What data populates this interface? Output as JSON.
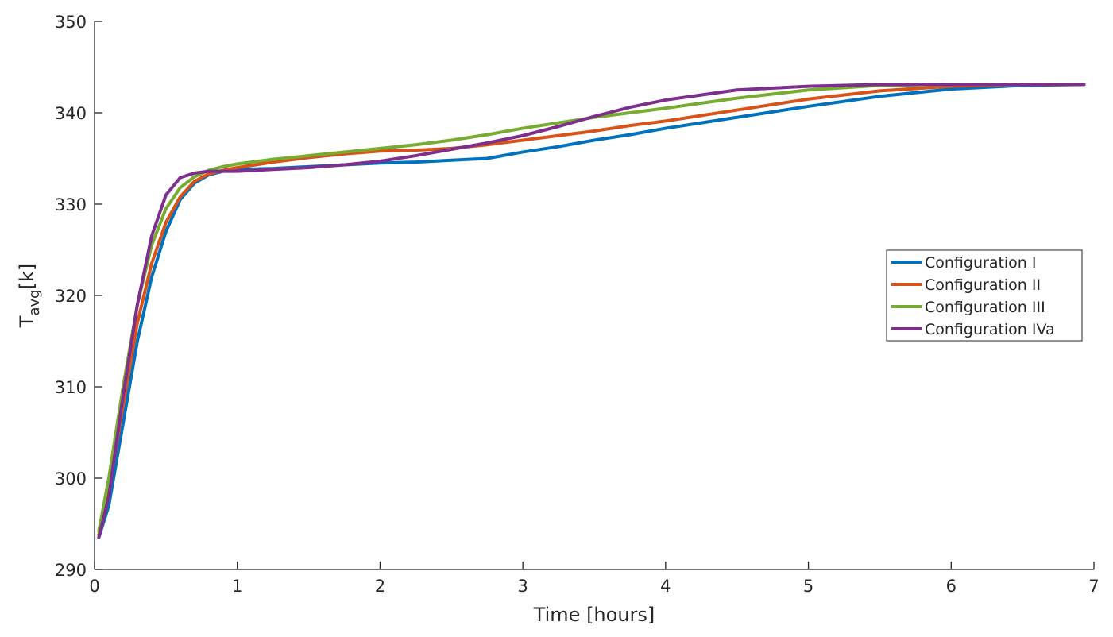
{
  "chart_data": {
    "type": "line",
    "xlabel": "Time [hours]",
    "ylabel": "T",
    "ylabel_subscript": "avg",
    "ylabel_unit": "[k]",
    "x": [
      0.03,
      0.1,
      0.2,
      0.3,
      0.4,
      0.5,
      0.6,
      0.7,
      0.8,
      0.9,
      1.0,
      1.25,
      1.5,
      1.75,
      2.0,
      2.25,
      2.5,
      2.75,
      3.0,
      3.25,
      3.5,
      3.75,
      4.0,
      4.5,
      5.0,
      5.5,
      6.0,
      6.5,
      6.93
    ],
    "series": [
      {
        "name": "Configuration I",
        "color": "#0072BD",
        "values": [
          293.5,
          297,
          306,
          315,
          322,
          327,
          330.5,
          332.3,
          333.2,
          333.6,
          333.8,
          333.9,
          334.1,
          334.3,
          334.5,
          334.6,
          334.8,
          335.0,
          335.7,
          336.3,
          337.0,
          337.6,
          338.3,
          339.5,
          340.7,
          341.8,
          342.6,
          343.0,
          343.1
        ]
      },
      {
        "name": "Configuration II",
        "color": "#D95319",
        "values": [
          293.8,
          298.5,
          308,
          317,
          323.5,
          328,
          330.8,
          332.5,
          333.3,
          333.7,
          334,
          334.6,
          335.1,
          335.5,
          335.8,
          335.9,
          336.1,
          336.5,
          337.0,
          337.5,
          338.0,
          338.6,
          339.1,
          340.3,
          341.5,
          342.4,
          342.9,
          343.1,
          343.1
        ]
      },
      {
        "name": "Configuration III",
        "color": "#77AC30",
        "values": [
          294.2,
          300,
          310,
          319,
          325.5,
          329.5,
          331.8,
          333,
          333.7,
          334.1,
          334.4,
          334.9,
          335.3,
          335.7,
          336.1,
          336.5,
          337,
          337.6,
          338.3,
          338.9,
          339.5,
          340.0,
          340.5,
          341.6,
          342.5,
          343.0,
          343.1,
          343.1,
          343.1
        ]
      },
      {
        "name": "Configuration IVa",
        "color": "#7E2F8E",
        "values": [
          293.5,
          298,
          309,
          319,
          326.5,
          331,
          332.9,
          333.4,
          333.6,
          333.6,
          333.6,
          333.8,
          334,
          334.3,
          334.7,
          335.3,
          336,
          336.7,
          337.5,
          338.5,
          339.6,
          340.6,
          341.4,
          342.5,
          342.9,
          343.1,
          343.1,
          343.1,
          343.1
        ]
      }
    ],
    "xlim": [
      0,
      7
    ],
    "xticks": [
      0,
      1,
      2,
      3,
      4,
      5,
      6,
      7
    ],
    "ylim": [
      290,
      350
    ],
    "yticks": [
      290,
      300,
      310,
      320,
      330,
      340,
      350
    ],
    "grid": false,
    "legend": "right"
  }
}
